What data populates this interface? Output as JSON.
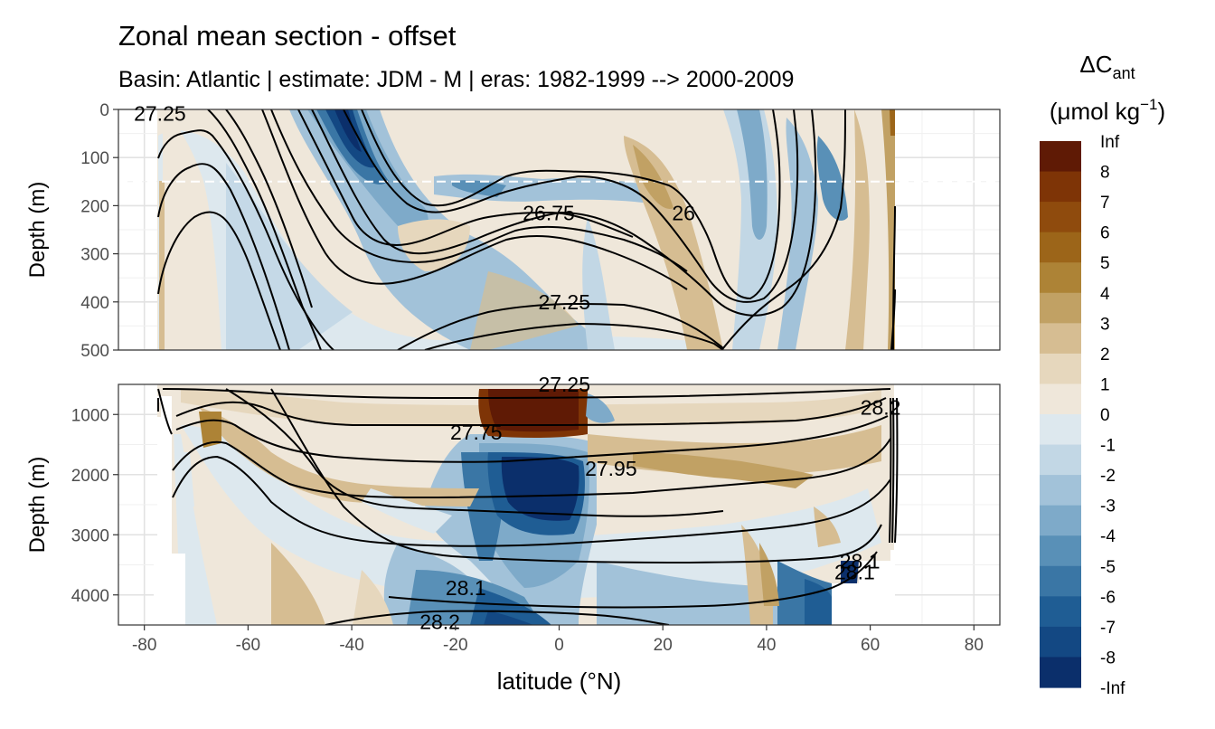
{
  "chart_data": {
    "type": "heatmap",
    "title": "Zonal mean section - offset",
    "subtitle": "Basin: Atlantic | estimate: JDM - M | eras: 1982-1999 --> 2000-2009",
    "xlabel": "latitude (°N)",
    "ylabel": "Depth (m)",
    "xlim": [
      -85,
      85
    ],
    "x_ticks": [
      -80,
      -60,
      -40,
      -20,
      0,
      20,
      40,
      60,
      80
    ],
    "panels": [
      {
        "name": "upper",
        "ylim": [
          500,
          0
        ],
        "y_ticks": [
          0,
          100,
          200,
          300,
          400,
          500
        ]
      },
      {
        "name": "lower",
        "ylim": [
          4500,
          500
        ],
        "y_ticks": [
          1000,
          2000,
          3000,
          4000
        ]
      }
    ],
    "reference_line_depth": 150,
    "legend": {
      "title_main": "ΔC",
      "title_sub": "ant",
      "unit_main": "(μmol kg",
      "unit_sup": "−1",
      "unit_end": ")",
      "breaks": [
        "Inf",
        "8",
        "7",
        "6",
        "5",
        "4",
        "3",
        "2",
        "1",
        "0",
        "-1",
        "-2",
        "-3",
        "-4",
        "-5",
        "-6",
        "-7",
        "-8",
        "-Inf"
      ],
      "colors": [
        "#5f1a05",
        "#7e3406",
        "#8f4b0d",
        "#9c6519",
        "#ad8336",
        "#c1a164",
        "#d6bd92",
        "#e6d7bd",
        "#efe7da",
        "#dde8ee",
        "#c2d7e5",
        "#a2c2d9",
        "#7eaac9",
        "#5990b7",
        "#3a76a5",
        "#1f5d94",
        "#134883",
        "#0b2f6b"
      ]
    },
    "isopycnals": [
      {
        "panel": "upper",
        "label": "27.25",
        "lat": -77,
        "depth": 8
      },
      {
        "panel": "upper",
        "label": "26.75",
        "lat": -2,
        "depth": 215
      },
      {
        "panel": "upper",
        "label": "26",
        "lat": 24,
        "depth": 215
      },
      {
        "panel": "upper",
        "label": "27.25",
        "lat": 1,
        "depth": 400
      },
      {
        "panel": "lower",
        "label": "27.25",
        "lat": 1,
        "depth": 500
      },
      {
        "panel": "lower",
        "label": "27.75",
        "lat": -16,
        "depth": 1300
      },
      {
        "panel": "lower",
        "label": "27.95",
        "lat": 10,
        "depth": 1900
      },
      {
        "panel": "lower",
        "label": "28.1",
        "lat": -18,
        "depth": 3880
      },
      {
        "panel": "lower",
        "label": "28.2",
        "lat": -23,
        "depth": 4450
      },
      {
        "panel": "lower",
        "label": "28.1",
        "lat": 58,
        "depth": 3440
      },
      {
        "panel": "lower",
        "label": "28.1",
        "lat": 57,
        "depth": 3620
      },
      {
        "panel": "lower",
        "label": "28.2",
        "lat": 62,
        "depth": 880
      }
    ]
  }
}
